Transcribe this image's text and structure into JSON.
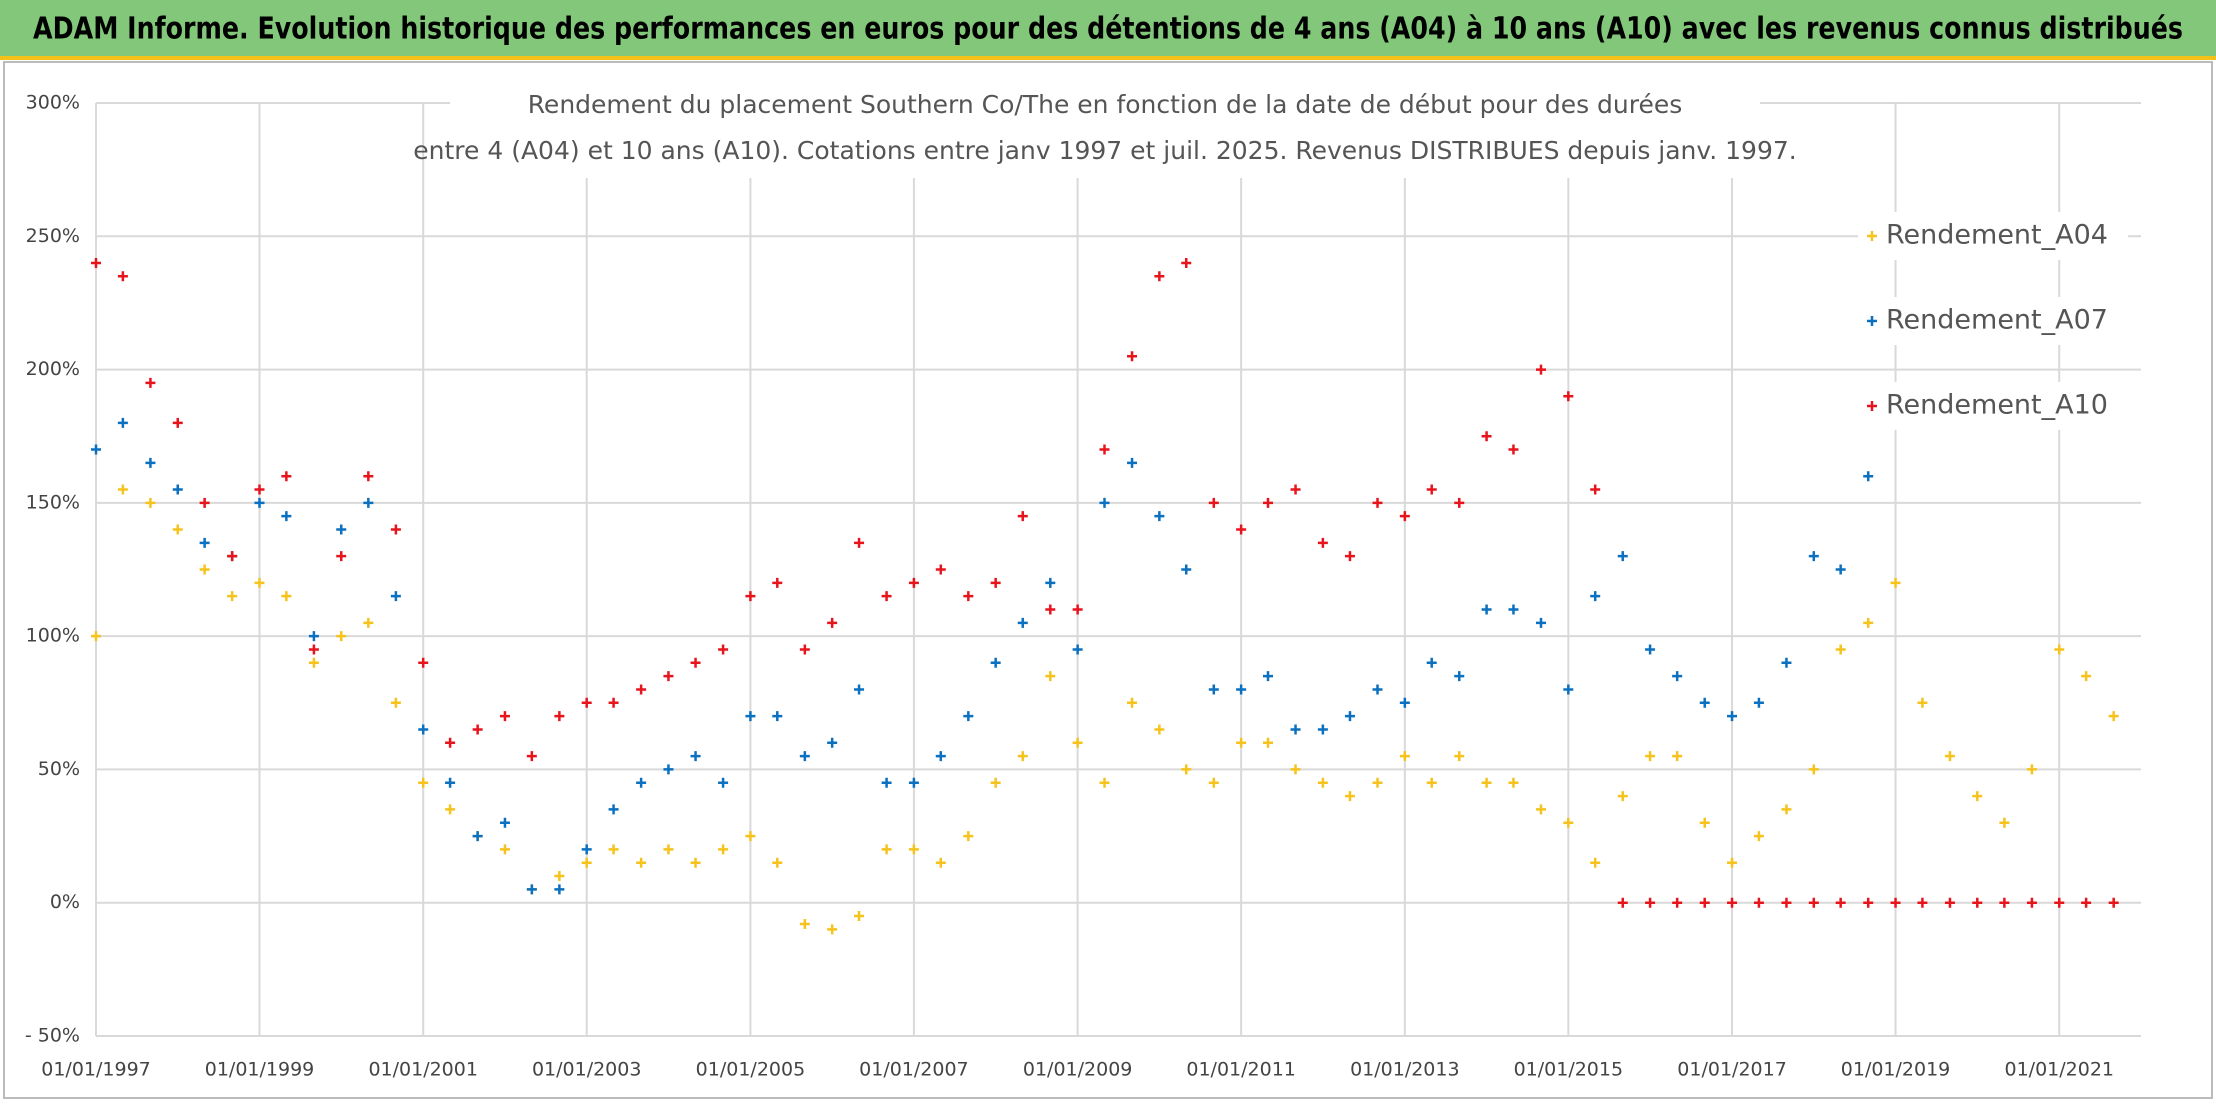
{
  "header": "ADAM Informe. Evolution historique des performances en euros pour des détentions de 4 ans (A04) à 10 ans (A10) avec les revenus connus distribués",
  "chart_data": {
    "type": "scatter",
    "title": [
      "Rendement du placement Southern Co/The en fonction de la date de début pour des durées",
      "entre 4 (A04) et 10 ans (A10). Cotations entre janv 1997 et juil. 2025. Revenus DISTRIBUES depuis janv. 1997."
    ],
    "xlim": [
      "1997-01-01",
      "2022-01-01"
    ],
    "xticks": [
      {
        "value": "1997-01-01",
        "label": "01/01/1997"
      },
      {
        "value": "1999-01-01",
        "label": "01/01/1999"
      },
      {
        "value": "2001-01-01",
        "label": "01/01/2001"
      },
      {
        "value": "2003-01-01",
        "label": "01/01/2003"
      },
      {
        "value": "2005-01-01",
        "label": "01/01/2005"
      },
      {
        "value": "2007-01-01",
        "label": "01/01/2007"
      },
      {
        "value": "2009-01-01",
        "label": "01/01/2009"
      },
      {
        "value": "2011-01-01",
        "label": "01/01/2011"
      },
      {
        "value": "2013-01-01",
        "label": "01/01/2013"
      },
      {
        "value": "2015-01-01",
        "label": "01/01/2015"
      },
      {
        "value": "2017-01-01",
        "label": "01/01/2017"
      },
      {
        "value": "2019-01-01",
        "label": "01/01/2019"
      },
      {
        "value": "2021-01-01",
        "label": "01/01/2021"
      }
    ],
    "ylim": [
      -50,
      300
    ],
    "yticks": [
      {
        "value": -50,
        "label": "- 50%"
      },
      {
        "value": 0,
        "label": "0%"
      },
      {
        "value": 50,
        "label": "50%"
      },
      {
        "value": 100,
        "label": "100%"
      },
      {
        "value": 150,
        "label": "150%"
      },
      {
        "value": 200,
        "label": "200%"
      },
      {
        "value": 250,
        "label": "250%"
      },
      {
        "value": 300,
        "label": "300%"
      }
    ],
    "grid": true,
    "legend": "right",
    "series": [
      {
        "name": "Rendement_A04",
        "color": "#f5c31c",
        "x": [
          "1997-01-01",
          "1997-05-01",
          "1997-09-01",
          "1998-01-01",
          "1998-05-01",
          "1998-09-01",
          "1999-01-01",
          "1999-05-01",
          "1999-09-01",
          "2000-01-01",
          "2000-05-01",
          "2000-09-01",
          "2001-01-01",
          "2001-05-01",
          "2001-09-01",
          "2002-01-01",
          "2002-05-01",
          "2002-09-01",
          "2003-01-01",
          "2003-05-01",
          "2003-09-01",
          "2004-01-01",
          "2004-05-01",
          "2004-09-01",
          "2005-01-01",
          "2005-05-01",
          "2005-09-01",
          "2006-01-01",
          "2006-05-01",
          "2006-09-01",
          "2007-01-01",
          "2007-05-01",
          "2007-09-01",
          "2008-01-01",
          "2008-05-01",
          "2008-09-01",
          "2009-01-01",
          "2009-05-01",
          "2009-09-01",
          "2010-01-01",
          "2010-05-01",
          "2010-09-01",
          "2011-01-01",
          "2011-05-01",
          "2011-09-01",
          "2012-01-01",
          "2012-05-01",
          "2012-09-01",
          "2013-01-01",
          "2013-05-01",
          "2013-09-01",
          "2014-01-01",
          "2014-05-01",
          "2014-09-01",
          "2015-01-01",
          "2015-05-01",
          "2015-09-01",
          "2016-01-01",
          "2016-05-01",
          "2016-09-01",
          "2017-01-01",
          "2017-05-01",
          "2017-09-01",
          "2018-01-01",
          "2018-05-01",
          "2018-09-01",
          "2019-01-01",
          "2019-05-01",
          "2019-09-01",
          "2020-01-01",
          "2020-05-01",
          "2020-09-01",
          "2021-01-01",
          "2021-05-01",
          "2021-09-01"
        ],
        "values": [
          100,
          155,
          150,
          140,
          125,
          115,
          120,
          115,
          90,
          100,
          105,
          75,
          45,
          35,
          25,
          20,
          5,
          10,
          15,
          20,
          15,
          20,
          15,
          20,
          25,
          15,
          -8,
          -10,
          -5,
          20,
          20,
          15,
          25,
          45,
          55,
          85,
          60,
          45,
          75,
          65,
          50,
          45,
          60,
          60,
          50,
          45,
          40,
          45,
          55,
          45,
          55,
          45,
          45,
          35,
          30,
          15,
          40,
          55,
          55,
          30,
          15,
          25,
          35,
          50,
          95,
          105,
          120,
          75,
          55,
          40,
          30,
          50,
          95,
          85,
          70
        ]
      },
      {
        "name": "Rendement_A07",
        "color": "#0a70bf",
        "x": [
          "1997-01-01",
          "1997-05-01",
          "1997-09-01",
          "1998-01-01",
          "1998-05-01",
          "1998-09-01",
          "1999-01-01",
          "1999-05-01",
          "1999-09-01",
          "2000-01-01",
          "2000-05-01",
          "2000-09-01",
          "2001-01-01",
          "2001-05-01",
          "2001-09-01",
          "2002-01-01",
          "2002-05-01",
          "2002-09-01",
          "2003-01-01",
          "2003-05-01",
          "2003-09-01",
          "2004-01-01",
          "2004-05-01",
          "2004-09-01",
          "2005-01-01",
          "2005-05-01",
          "2005-09-01",
          "2006-01-01",
          "2006-05-01",
          "2006-09-01",
          "2007-01-01",
          "2007-05-01",
          "2007-09-01",
          "2008-01-01",
          "2008-05-01",
          "2008-09-01",
          "2009-01-01",
          "2009-05-01",
          "2009-09-01",
          "2010-01-01",
          "2010-05-01",
          "2010-09-01",
          "2011-01-01",
          "2011-05-01",
          "2011-09-01",
          "2012-01-01",
          "2012-05-01",
          "2012-09-01",
          "2013-01-01",
          "2013-05-01",
          "2013-09-01",
          "2014-01-01",
          "2014-05-01",
          "2014-09-01",
          "2015-01-01",
          "2015-05-01",
          "2015-09-01",
          "2016-01-01",
          "2016-05-01",
          "2016-09-01",
          "2017-01-01",
          "2017-05-01",
          "2017-09-01",
          "2018-01-01",
          "2018-05-01",
          "2018-09-01"
        ],
        "values": [
          170,
          180,
          165,
          155,
          135,
          130,
          150,
          145,
          100,
          140,
          150,
          115,
          65,
          45,
          25,
          30,
          5,
          5,
          20,
          35,
          45,
          50,
          55,
          45,
          70,
          70,
          55,
          60,
          80,
          45,
          45,
          55,
          70,
          90,
          105,
          120,
          95,
          150,
          165,
          145,
          125,
          80,
          80,
          85,
          65,
          65,
          70,
          80,
          75,
          90,
          85,
          110,
          110,
          105,
          80,
          115,
          130,
          95,
          85,
          75,
          70,
          75,
          90,
          130,
          125,
          160
        ]
      },
      {
        "name": "Rendement_A10",
        "color": "#e8141c",
        "x": [
          "1997-01-01",
          "1997-05-01",
          "1997-09-01",
          "1998-01-01",
          "1998-05-01",
          "1998-09-01",
          "1999-01-01",
          "1999-05-01",
          "1999-09-01",
          "2000-01-01",
          "2000-05-01",
          "2000-09-01",
          "2001-01-01",
          "2001-05-01",
          "2001-09-01",
          "2002-01-01",
          "2002-05-01",
          "2002-09-01",
          "2003-01-01",
          "2003-05-01",
          "2003-09-01",
          "2004-01-01",
          "2004-05-01",
          "2004-09-01",
          "2005-01-01",
          "2005-05-01",
          "2005-09-01",
          "2006-01-01",
          "2006-05-01",
          "2006-09-01",
          "2007-01-01",
          "2007-05-01",
          "2007-09-01",
          "2008-01-01",
          "2008-05-01",
          "2008-09-01",
          "2009-01-01",
          "2009-05-01",
          "2009-09-01",
          "2010-01-01",
          "2010-05-01",
          "2010-09-01",
          "2011-01-01",
          "2011-05-01",
          "2011-09-01",
          "2012-01-01",
          "2012-05-01",
          "2012-09-01",
          "2013-01-01",
          "2013-05-01",
          "2013-09-01",
          "2014-01-01",
          "2014-05-01",
          "2014-09-01",
          "2015-01-01",
          "2015-05-01",
          "2015-09-01",
          "2016-01-01",
          "2016-05-01",
          "2016-09-01",
          "2017-01-01",
          "2017-05-01",
          "2017-09-01",
          "2018-01-01",
          "2018-05-01",
          "2018-09-01",
          "2019-01-01",
          "2019-05-01",
          "2019-09-01",
          "2020-01-01",
          "2020-05-01",
          "2020-09-01",
          "2021-01-01",
          "2021-05-01",
          "2021-09-01"
        ],
        "values": [
          240,
          235,
          195,
          180,
          150,
          130,
          155,
          160,
          95,
          130,
          160,
          140,
          90,
          60,
          65,
          70,
          55,
          70,
          75,
          75,
          80,
          85,
          90,
          95,
          115,
          120,
          95,
          105,
          135,
          115,
          120,
          125,
          115,
          120,
          145,
          110,
          110,
          170,
          205,
          235,
          240,
          150,
          140,
          150,
          155,
          135,
          130,
          150,
          145,
          155,
          150,
          175,
          170,
          200,
          190,
          155,
          0,
          0,
          0,
          0,
          0,
          0,
          0,
          0,
          0,
          0,
          0,
          0,
          0,
          0,
          0,
          0,
          0,
          0,
          0
        ]
      }
    ]
  }
}
